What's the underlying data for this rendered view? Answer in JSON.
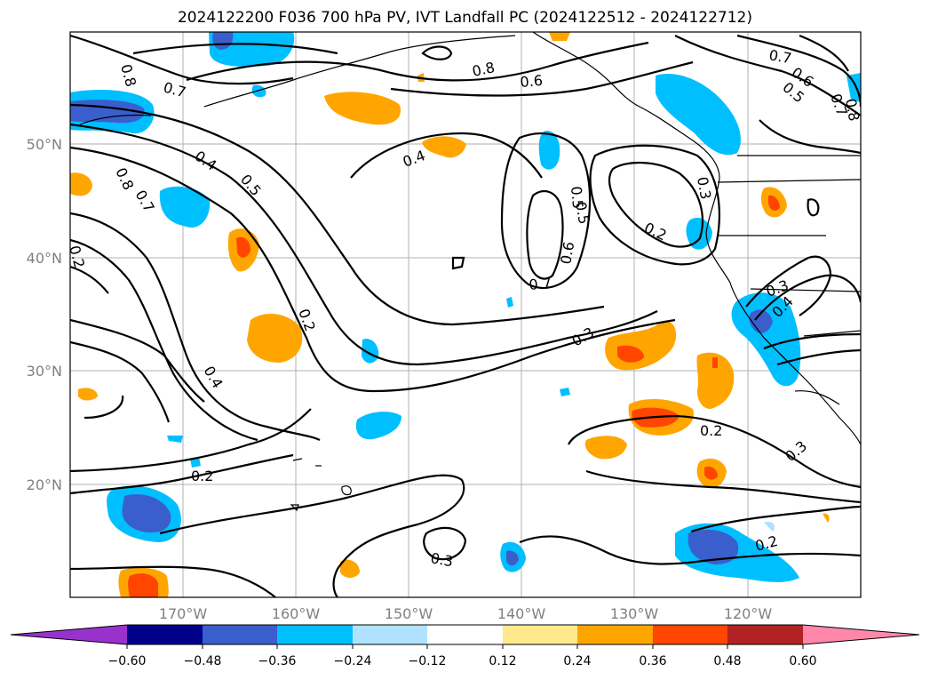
{
  "title": "2024122200 F036 700 hPa PV, IVT Landfall PC (2024122512 - 2024122712)",
  "map": {
    "lon_labels": [
      "170°W",
      "160°W",
      "150°W",
      "140°W",
      "130°W",
      "120°W"
    ],
    "lat_labels": [
      "50°N",
      "40°N",
      "30°N",
      "20°N"
    ],
    "contour_labels": [
      "0.8",
      "0.7",
      "0.6",
      "0.8",
      "0.7",
      "0.6",
      "0.5",
      "0.7",
      "0.8",
      "0.4",
      "0.5",
      "0.4",
      "0.8",
      "0.7",
      "0.5",
      "0.2",
      "0.4",
      "0.2",
      "0.3",
      "0.7",
      "0.6",
      "0.5",
      "0.2",
      "0.3",
      "0.3",
      "0.4",
      "0.2",
      "0.3",
      "0.2",
      "0.3",
      "0.2"
    ]
  },
  "colorbar": {
    "ticks": [
      "−0.60",
      "−0.48",
      "−0.36",
      "−0.24",
      "−0.12",
      "0.12",
      "0.24",
      "0.36",
      "0.48",
      "0.60"
    ],
    "colors": [
      "#9932cc",
      "#00008b",
      "#3a5fcd",
      "#00bfff",
      "#b0e2ff",
      "#ffffff",
      "#ffe98c",
      "#ffa500",
      "#ff4500",
      "#b22222",
      "#ff88aa"
    ]
  }
}
